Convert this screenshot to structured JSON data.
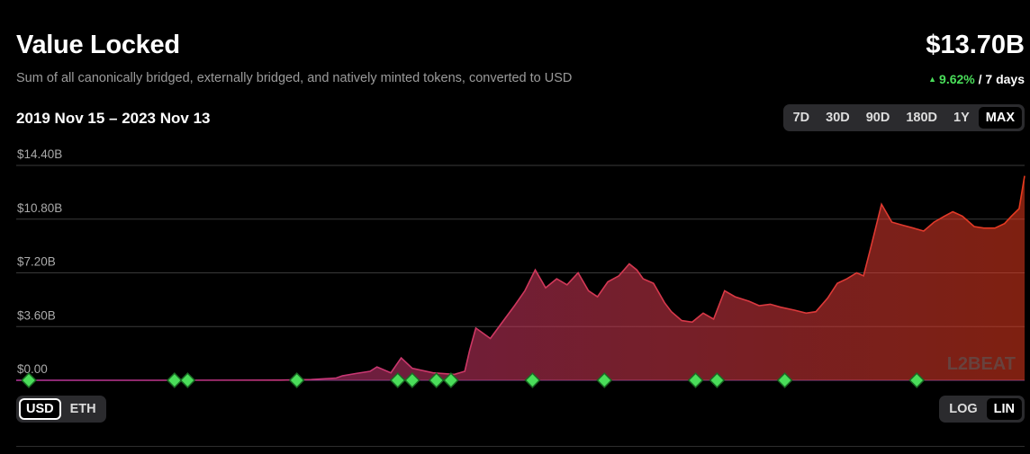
{
  "header": {
    "title": "Value Locked",
    "subtitle": "Sum of all canonically bridged, externally bridged, and natively minted tokens, converted to USD",
    "total": "$13.70B",
    "change_pct": "9.62%",
    "change_period": "/ 7 days",
    "change_direction": "up"
  },
  "date_range": "2019 Nov 15 – 2023 Nov 13",
  "range_options": [
    "7D",
    "30D",
    "90D",
    "180D",
    "1Y",
    "MAX"
  ],
  "range_selected": "MAX",
  "currency_options": [
    "USD",
    "ETH"
  ],
  "currency_selected": "USD",
  "scale_options": [
    "LOG",
    "LIN"
  ],
  "scale_selected": "LIN",
  "watermark": "L2BEAT",
  "colors": {
    "gradient_start": "#b9359e",
    "gradient_end": "#e63a1e",
    "milestone": "#4ade5a",
    "positive": "#4ade5a"
  },
  "chart_data": {
    "type": "area",
    "xlim": [
      "2019-11-15",
      "2023-11-13"
    ],
    "ylim": [
      0,
      14.4
    ],
    "y_unit": "$B",
    "yticks": [
      "$0.00",
      "$3.60B",
      "$7.20B",
      "$10.80B",
      "$14.40B"
    ],
    "grid": true,
    "series": [
      {
        "x": [
          "2019-11-15",
          "2020-06-01",
          "2020-12-01",
          "2021-01-15",
          "2021-02-20",
          "2021-03-01",
          "2021-03-20",
          "2021-04-10",
          "2021-04-20",
          "2021-05-10",
          "2021-05-25",
          "2021-06-10",
          "2021-07-10",
          "2021-08-10",
          "2021-08-25",
          "2021-09-01",
          "2021-09-10",
          "2021-10-01",
          "2021-10-20",
          "2021-11-05",
          "2021-11-20",
          "2021-12-05",
          "2021-12-20",
          "2022-01-05",
          "2022-01-20",
          "2022-02-05",
          "2022-02-20",
          "2022-03-05",
          "2022-03-20",
          "2022-04-05",
          "2022-04-20",
          "2022-05-01",
          "2022-05-10",
          "2022-05-25",
          "2022-06-10",
          "2022-06-20",
          "2022-07-05",
          "2022-07-20",
          "2022-08-05",
          "2022-08-20",
          "2022-09-05",
          "2022-09-20",
          "2022-10-10",
          "2022-10-25",
          "2022-11-10",
          "2022-11-25",
          "2022-12-15",
          "2023-01-01",
          "2023-01-15",
          "2023-02-01",
          "2023-02-15",
          "2023-03-01",
          "2023-03-15",
          "2023-03-25",
          "2023-04-05",
          "2023-04-20",
          "2023-05-05",
          "2023-05-20",
          "2023-06-05",
          "2023-06-20",
          "2023-07-05",
          "2023-07-20",
          "2023-08-01",
          "2023-08-15",
          "2023-09-01",
          "2023-09-15",
          "2023-10-01",
          "2023-10-15",
          "2023-10-25",
          "2023-11-05",
          "2023-11-13"
        ],
        "values": [
          0,
          0,
          0.01,
          0.05,
          0.15,
          0.3,
          0.45,
          0.6,
          0.9,
          0.5,
          1.5,
          0.8,
          0.5,
          0.4,
          0.6,
          2.0,
          3.5,
          2.8,
          4.0,
          5.0,
          6.0,
          7.4,
          6.2,
          6.8,
          6.4,
          7.2,
          6.0,
          5.6,
          6.6,
          7.0,
          7.8,
          7.4,
          6.8,
          6.5,
          5.2,
          4.6,
          4.0,
          3.9,
          4.5,
          4.1,
          6.0,
          5.6,
          5.3,
          5.0,
          5.1,
          4.9,
          4.7,
          4.5,
          4.6,
          5.5,
          6.5,
          6.8,
          7.2,
          7.0,
          9.0,
          11.8,
          10.6,
          10.4,
          10.2,
          10.0,
          10.6,
          11.0,
          11.3,
          11.0,
          10.3,
          10.2,
          10.2,
          10.5,
          11.0,
          11.5,
          13.7
        ]
      }
    ],
    "milestones": [
      "2019-11-15",
      "2020-07-01",
      "2020-07-20",
      "2020-12-25",
      "2021-05-20",
      "2021-06-10",
      "2021-07-15",
      "2021-08-05",
      "2021-12-01",
      "2022-03-15",
      "2022-07-25",
      "2022-08-25",
      "2022-12-01",
      "2023-06-10"
    ]
  }
}
